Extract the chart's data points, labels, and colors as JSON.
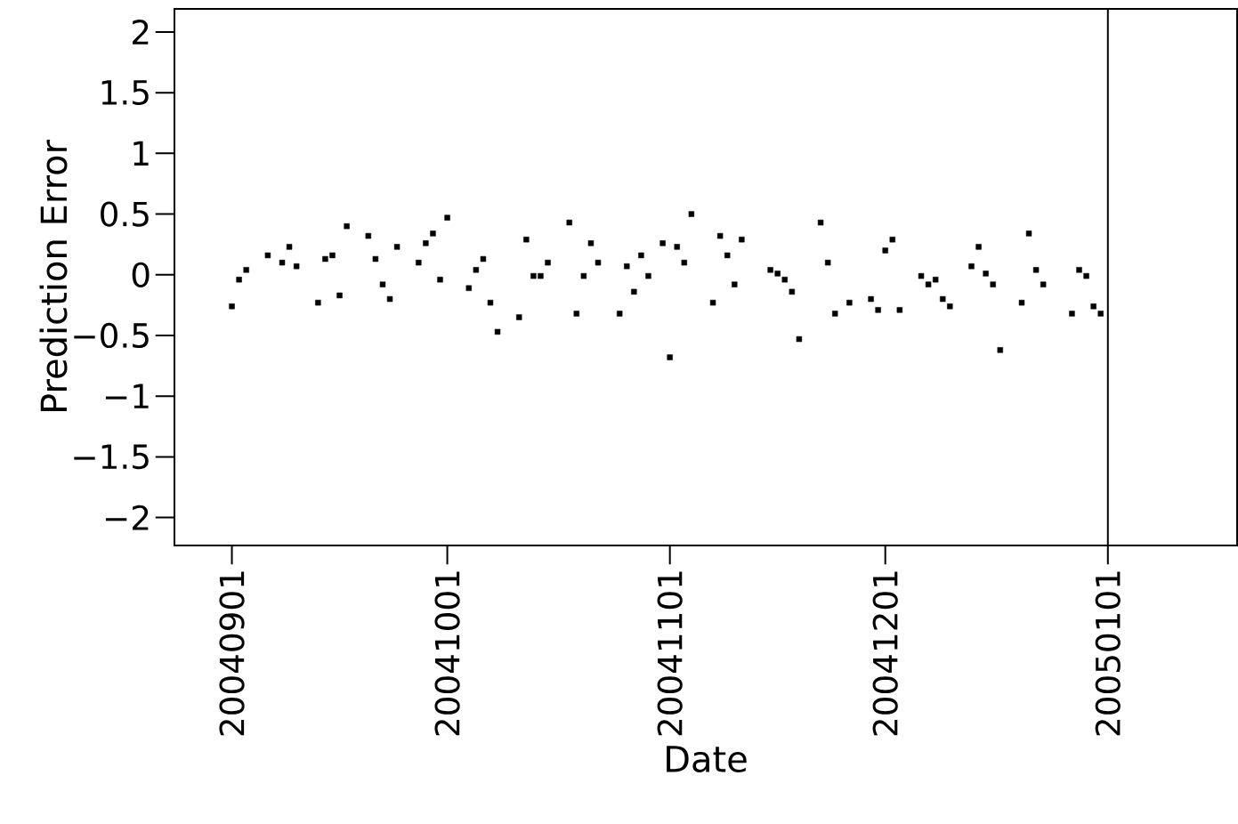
{
  "chart_data": {
    "type": "scatter",
    "xlabel": "Date",
    "ylabel": "Prediction Error",
    "x": [
      "2004-09-01",
      "2004-09-02",
      "2004-09-03",
      "2004-09-06",
      "2004-09-08",
      "2004-09-09",
      "2004-09-10",
      "2004-09-13",
      "2004-09-14",
      "2004-09-15",
      "2004-09-16",
      "2004-09-17",
      "2004-09-20",
      "2004-09-21",
      "2004-09-22",
      "2004-09-23",
      "2004-09-24",
      "2004-09-27",
      "2004-09-28",
      "2004-09-29",
      "2004-09-30",
      "2004-10-01",
      "2004-10-04",
      "2004-10-05",
      "2004-10-06",
      "2004-10-07",
      "2004-10-08",
      "2004-10-11",
      "2004-10-12",
      "2004-10-13",
      "2004-10-14",
      "2004-10-15",
      "2004-10-18",
      "2004-10-19",
      "2004-10-20",
      "2004-10-21",
      "2004-10-22",
      "2004-10-25",
      "2004-10-26",
      "2004-10-27",
      "2004-10-28",
      "2004-10-29",
      "2004-10-31",
      "2004-11-01",
      "2004-11-02",
      "2004-11-03",
      "2004-11-04",
      "2004-11-07",
      "2004-11-08",
      "2004-11-09",
      "2004-11-10",
      "2004-11-11",
      "2004-11-15",
      "2004-11-16",
      "2004-11-17",
      "2004-11-18",
      "2004-11-19",
      "2004-11-22",
      "2004-11-23",
      "2004-11-24",
      "2004-11-26",
      "2004-11-29",
      "2004-11-30",
      "2004-12-01",
      "2004-12-02",
      "2004-12-03",
      "2004-12-06",
      "2004-12-07",
      "2004-12-08",
      "2004-12-09",
      "2004-12-10",
      "2004-12-13",
      "2004-12-14",
      "2004-12-15",
      "2004-12-16",
      "2004-12-17",
      "2004-12-20",
      "2004-12-21",
      "2004-12-22",
      "2004-12-23",
      "2004-12-27",
      "2004-12-28",
      "2004-12-29",
      "2004-12-30",
      "2004-12-31"
    ],
    "series": [
      {
        "color": "#000000",
        "values": [
          -0.26,
          -0.04,
          0.04,
          0.16,
          0.1,
          0.23,
          0.07,
          -0.23,
          0.13,
          0.16,
          -0.17,
          0.4,
          0.32,
          0.13,
          -0.08,
          -0.2,
          0.23,
          0.1,
          0.26,
          0.34,
          -0.04,
          0.47,
          -0.11,
          0.04,
          0.13,
          -0.23,
          -0.47,
          -0.35,
          0.29,
          -0.01,
          -0.01,
          0.1,
          0.43,
          -0.32,
          -0.01,
          0.26,
          0.1,
          -0.32,
          0.07,
          -0.14,
          0.16,
          -0.01,
          0.26,
          -0.68,
          0.23,
          0.1,
          0.5,
          -0.23,
          0.32,
          0.16,
          -0.08,
          0.29,
          0.04,
          0.01,
          -0.04,
          -0.14,
          -0.53,
          0.43,
          0.1,
          -0.32,
          -0.23,
          -0.2,
          -0.29,
          0.2,
          0.29,
          -0.29,
          -0.01,
          -0.08,
          -0.04,
          -0.2,
          -0.26,
          0.07,
          0.23,
          0.01,
          -0.08,
          -0.62,
          -0.23,
          0.34,
          0.04,
          -0.08,
          -0.32,
          0.04,
          -0.01,
          -0.26,
          -0.32
        ]
      }
    ],
    "xlim": [
      "2004-08-24",
      "2005-01-19"
    ],
    "ylim": [
      -2.23,
      2.19
    ],
    "xticks": [
      {
        "value": "2004-09-01",
        "label": "20040901"
      },
      {
        "value": "2004-10-01",
        "label": "20041001"
      },
      {
        "value": "2004-11-01",
        "label": "20041101"
      },
      {
        "value": "2004-12-01",
        "label": "20041201"
      },
      {
        "value": "2005-01-01",
        "label": "20050101"
      }
    ],
    "yticks": [
      {
        "value": -2,
        "label": "−2"
      },
      {
        "value": -1.5,
        "label": "−1.5"
      },
      {
        "value": -1,
        "label": "−1"
      },
      {
        "value": -0.5,
        "label": "−0.5"
      },
      0,
      0.5,
      1,
      1.5,
      2
    ],
    "ref_lines": [
      {
        "axis": "x",
        "value": "2005-01-01",
        "color": "#000000"
      }
    ],
    "marker": "square"
  }
}
